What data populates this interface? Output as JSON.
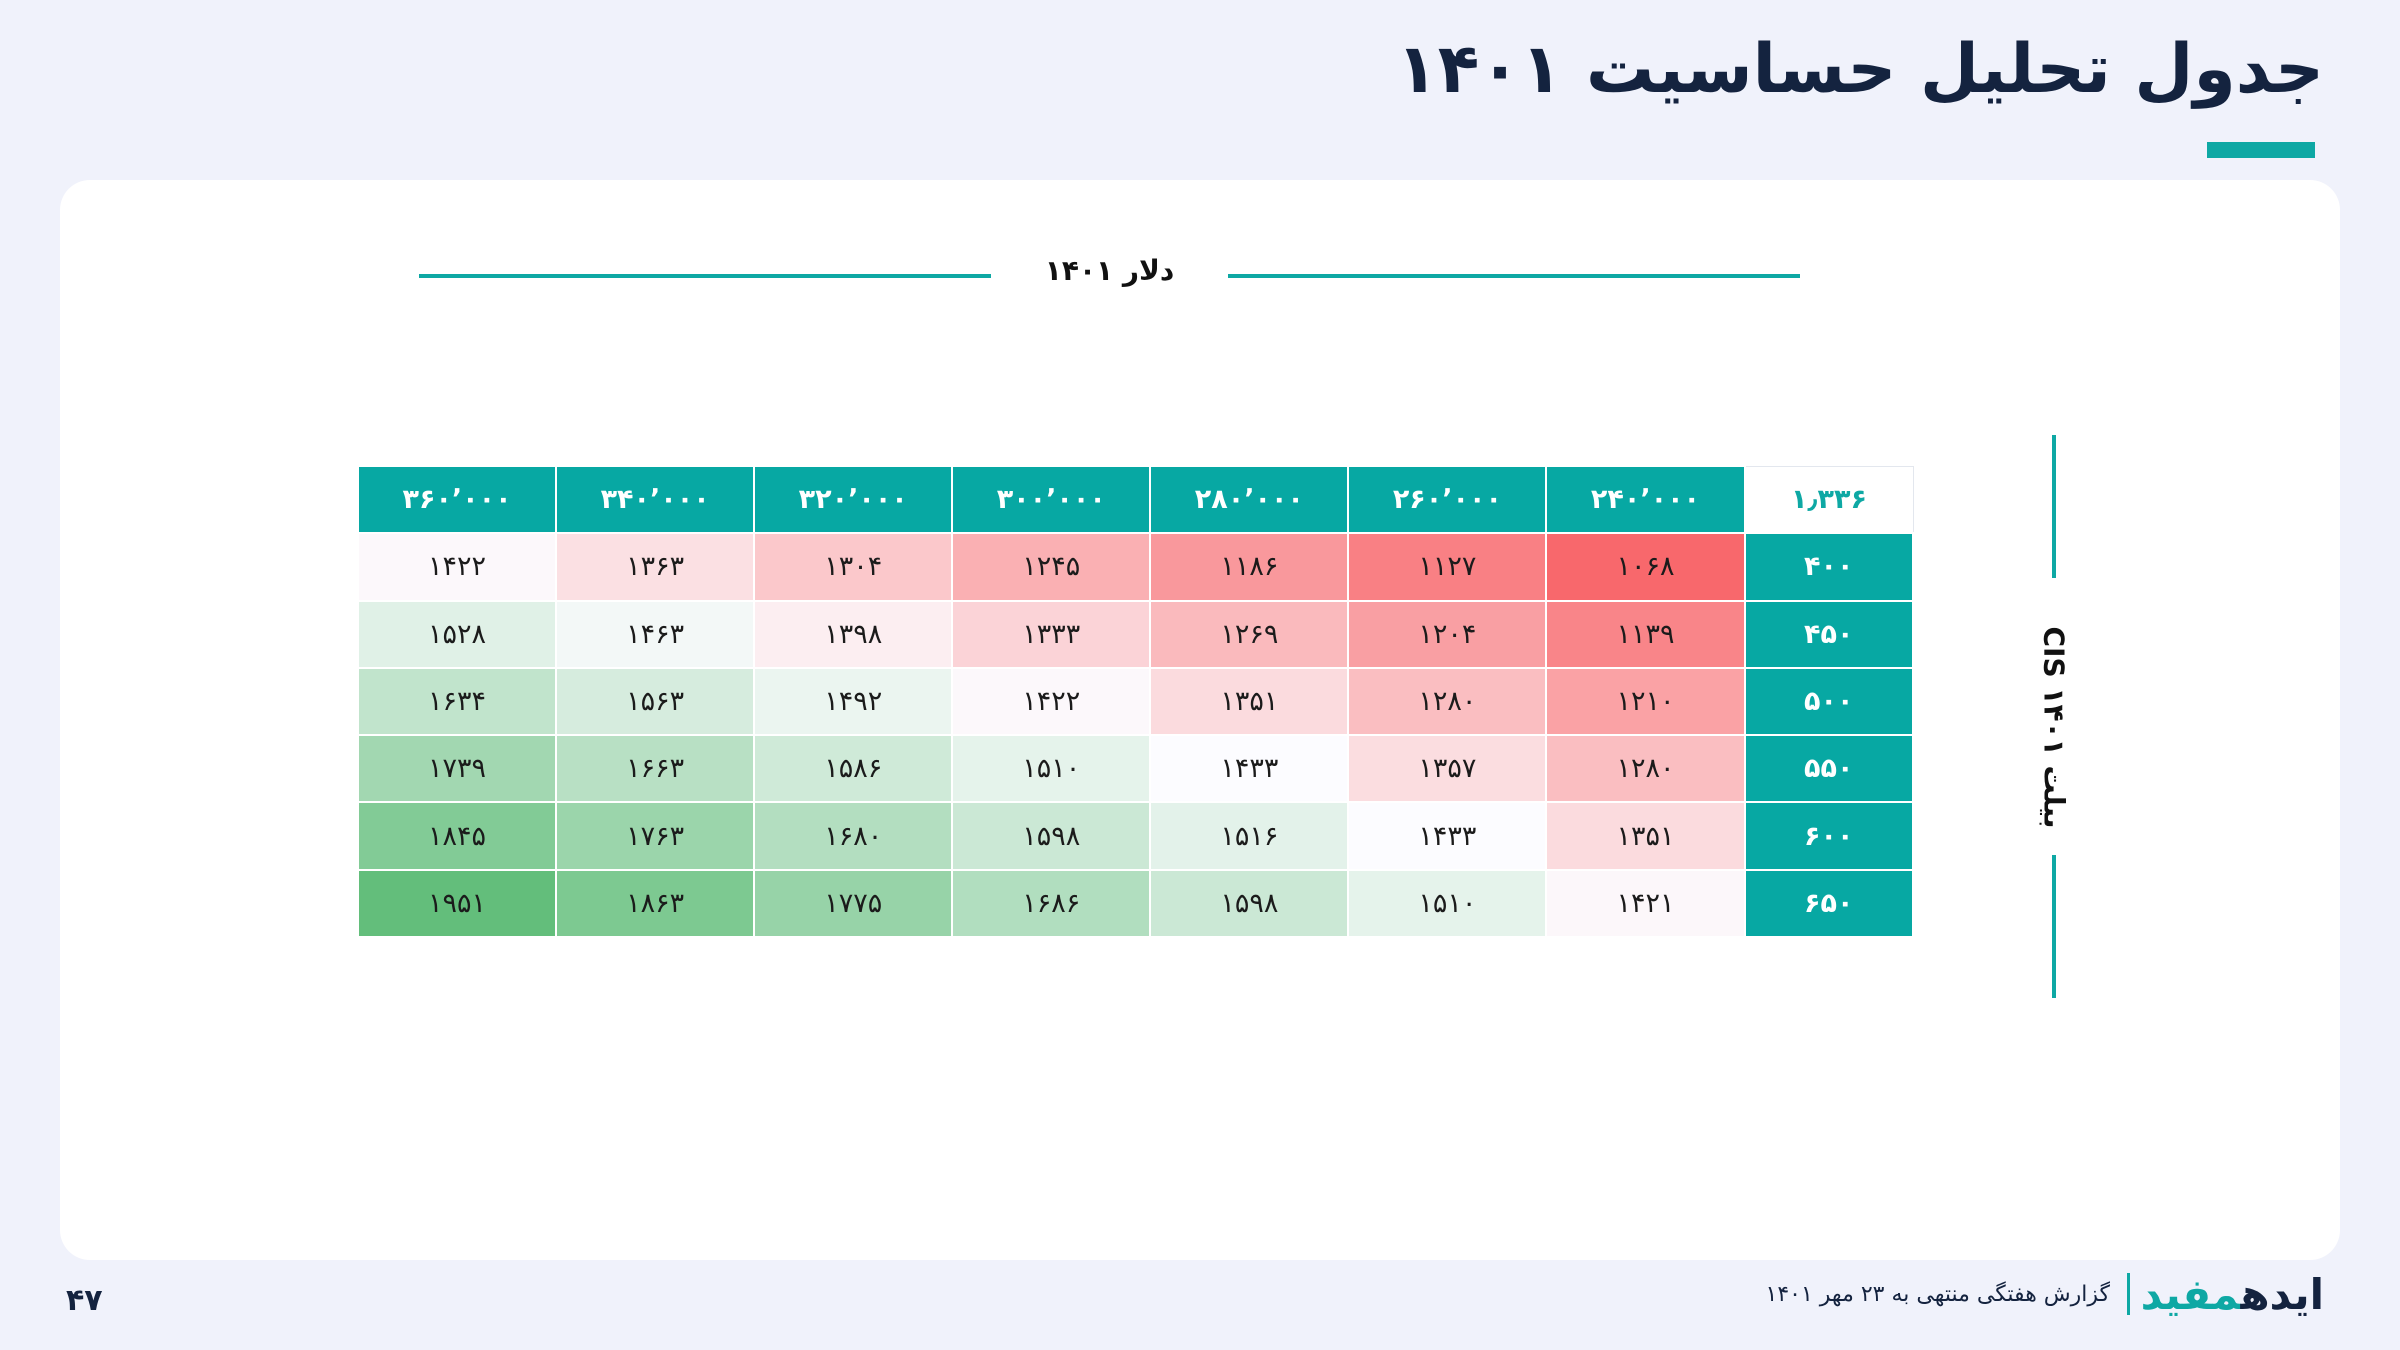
{
  "title": "جدول تحلیل حساسیت ۱۴۰۱",
  "column_axis_label": "دلار ۱۴۰۱",
  "row_axis_label": "بیلت CIS ۱۴۰۱",
  "table": {
    "corner": "۱٫۳۳۶",
    "columns": [
      "۲۴۰٬۰۰۰",
      "۲۶۰٬۰۰۰",
      "۲۸۰٬۰۰۰",
      "۳۰۰٬۰۰۰",
      "۳۲۰٬۰۰۰",
      "۳۴۰٬۰۰۰",
      "۳۶۰٬۰۰۰"
    ],
    "rows": [
      {
        "label": "۴۰۰",
        "values": [
          "۱۰۶۸",
          "۱۱۲۷",
          "۱۱۸۶",
          "۱۲۴۵",
          "۱۳۰۴",
          "۱۳۶۳",
          "۱۴۲۲"
        ]
      },
      {
        "label": "۴۵۰",
        "values": [
          "۱۱۳۹",
          "۱۲۰۴",
          "۱۲۶۹",
          "۱۳۳۳",
          "۱۳۹۸",
          "۱۴۶۳",
          "۱۵۲۸"
        ]
      },
      {
        "label": "۵۰۰",
        "values": [
          "۱۲۱۰",
          "۱۲۸۰",
          "۱۳۵۱",
          "۱۴۲۲",
          "۱۴۹۲",
          "۱۵۶۳",
          "۱۶۳۴"
        ]
      },
      {
        "label": "۵۵۰",
        "values": [
          "۱۲۸۰",
          "۱۳۵۷",
          "۱۴۳۳",
          "۱۵۱۰",
          "۱۵۸۶",
          "۱۶۶۳",
          "۱۷۳۹"
        ]
      },
      {
        "label": "۶۰۰",
        "values": [
          "۱۳۵۱",
          "۱۴۳۳",
          "۱۵۱۶",
          "۱۵۹۸",
          "۱۶۸۰",
          "۱۷۶۳",
          "۱۸۴۵"
        ]
      },
      {
        "label": "۶۵۰",
        "values": [
          "۱۴۲۱",
          "۱۵۱۰",
          "۱۵۹۸",
          "۱۶۸۶",
          "۱۷۷۵",
          "۱۸۶۳",
          "۱۹۵۱"
        ]
      }
    ],
    "numeric_values": [
      [
        1068,
        1127,
        1186,
        1245,
        1304,
        1363,
        1422
      ],
      [
        1139,
        1204,
        1269,
        1333,
        1398,
        1463,
        1528
      ],
      [
        1210,
        1280,
        1351,
        1422,
        1492,
        1563,
        1634
      ],
      [
        1280,
        1357,
        1433,
        1510,
        1586,
        1663,
        1739
      ],
      [
        1351,
        1433,
        1516,
        1598,
        1680,
        1763,
        1845
      ],
      [
        1421,
        1510,
        1598,
        1686,
        1775,
        1863,
        1951
      ]
    ],
    "midpoint": 1433,
    "colors": {
      "low": "#f8686c",
      "mid": "#fcfcff",
      "high": "#63be7b",
      "header": "#07a8a3"
    }
  },
  "footer": {
    "page_number": "۴۷",
    "brand_part1": "ایده",
    "brand_part2": "مفید",
    "caption": "گزارش هفتگی منتهی به ۲۳ مهر ۱۴۰۱"
  }
}
